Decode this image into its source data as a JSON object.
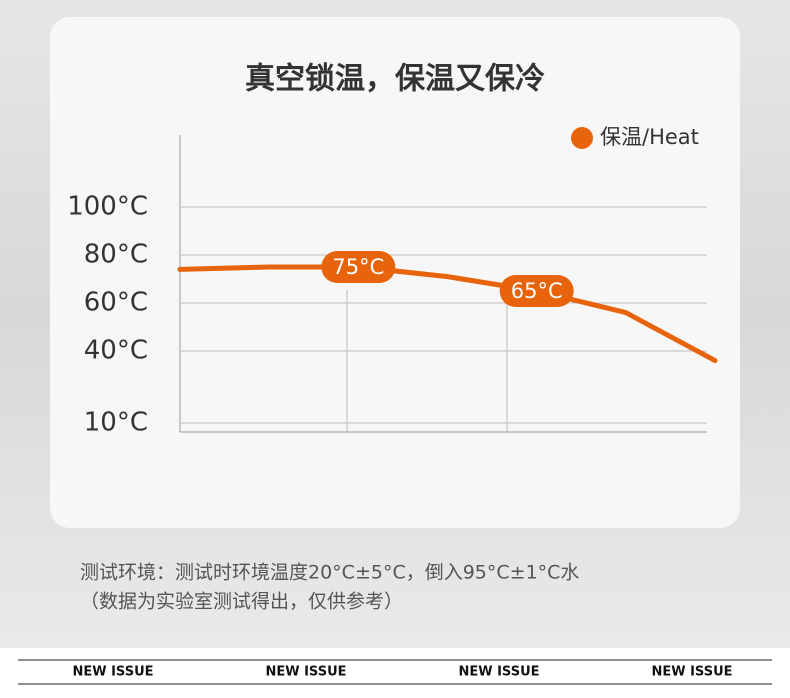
{
  "chart_data": {
    "type": "line",
    "title": "真空锁温，保温又保冷",
    "categories": [
      null,
      null,
      null,
      null,
      null,
      null,
      null
    ],
    "series": [
      {
        "name": "保温/Heat",
        "color": "#e8640c",
        "values": [
          74,
          75,
          75,
          71,
          65,
          56,
          36
        ],
        "value_labels": [
          null,
          null,
          "75°C",
          null,
          "65°C",
          null,
          null
        ]
      }
    ],
    "ylim": [
      6.25,
      130
    ],
    "yticks": [
      {
        "value": 100,
        "label": "100°C"
      },
      {
        "value": 80,
        "label": "80°C"
      },
      {
        "value": 60,
        "label": "60°C"
      },
      {
        "value": 40,
        "label": "40°C"
      },
      {
        "value": 10,
        "label": "10°C"
      }
    ],
    "grid": true,
    "legend": "top-right"
  },
  "notes": [
    "测试环境：测试时环境温度20°C±5°C，倒入95°C±1°C水",
    "（数据为实验室测试得出，仅供参考）"
  ],
  "footer": [
    "NEW ISSUE",
    "NEW ISSUE",
    "NEW ISSUE",
    "NEW ISSUE"
  ]
}
